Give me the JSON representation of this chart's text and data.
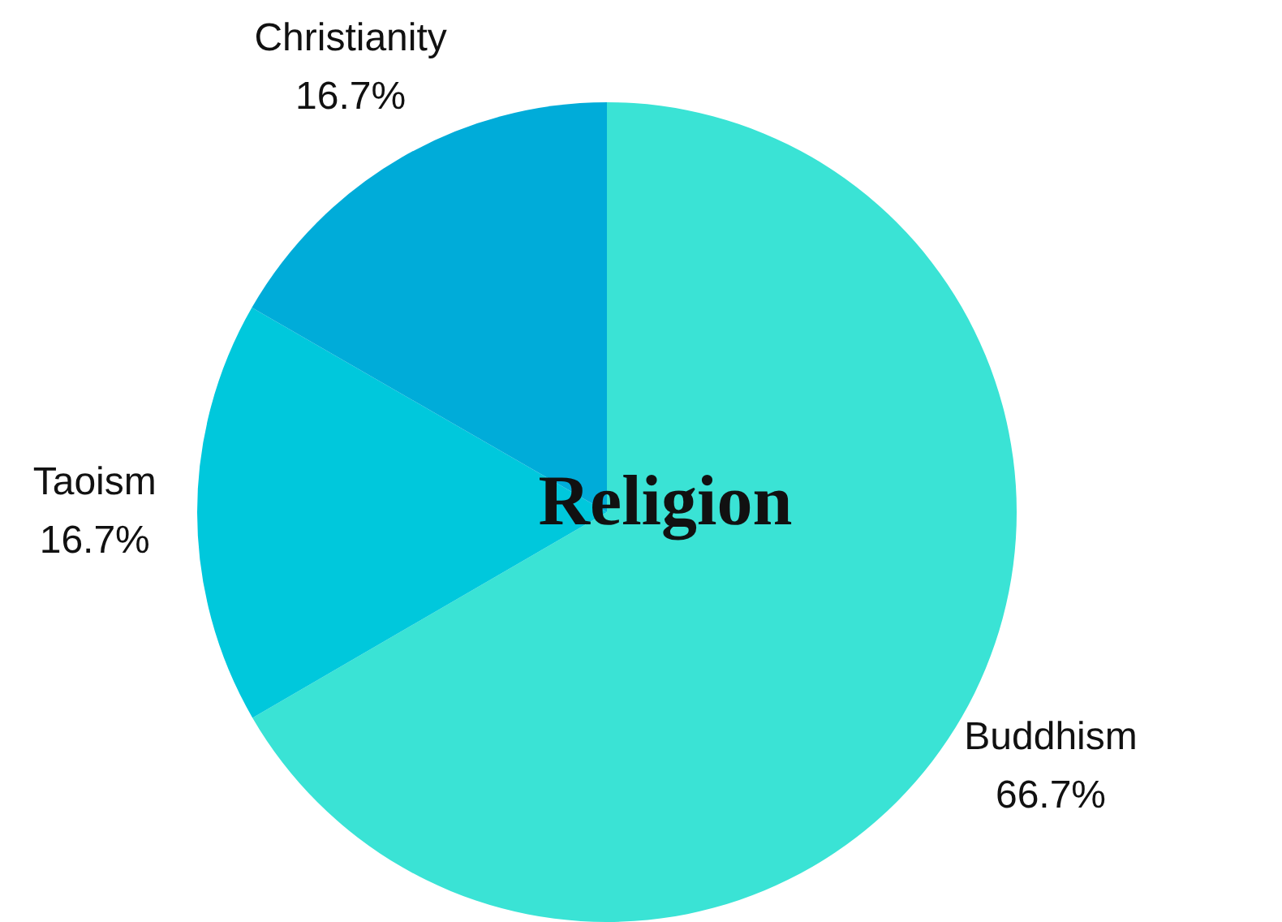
{
  "chart_data": {
    "type": "pie",
    "title": "Religion",
    "categories": [
      "Buddhism",
      "Taoism",
      "Christianity"
    ],
    "values": [
      66.7,
      16.7,
      16.7
    ],
    "colors": [
      "#3ae3d5",
      "#00c8dc",
      "#00acd9"
    ],
    "value_labels": [
      "66.7%",
      "16.7%",
      "16.7%"
    ],
    "legend": false
  }
}
